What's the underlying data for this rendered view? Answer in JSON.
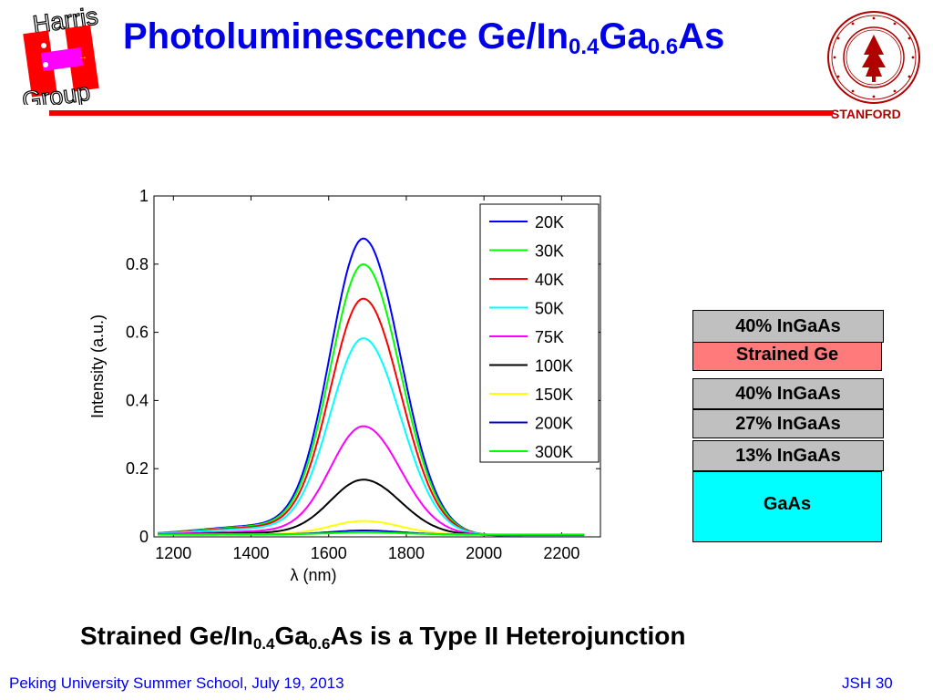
{
  "header": {
    "logo_text_top": "Harris",
    "logo_text_bottom": "Group",
    "title_main": "Photoluminescence Ge/In",
    "title_sub1": "0.4",
    "title_mid": "Ga",
    "title_sub2": "0.6",
    "title_end": "As",
    "seal_label": "STANFORD"
  },
  "colors": {
    "title": "#0000e6",
    "accent_bar": "#f00000",
    "strained_ge": "#ff7a7a",
    "ingaas": "#c0c0c0",
    "gaas": "#00ffff"
  },
  "chart_data": {
    "type": "line",
    "title": "",
    "xlabel": "λ (nm)",
    "ylabel": "Intensity (a.u.)",
    "xlim": [
      1150,
      2300
    ],
    "ylim": [
      0,
      1
    ],
    "xticks": [
      1200,
      1400,
      1600,
      1800,
      2000,
      2200
    ],
    "yticks": [
      0,
      0.2,
      0.4,
      0.6,
      0.8,
      1
    ],
    "ytick_labels": [
      "0",
      "0.2",
      "0.4",
      "0.6",
      "0.8",
      "1"
    ],
    "legend_position": "top-right",
    "series": [
      {
        "name": "20K",
        "color": "#0000ff",
        "peak": 0.86
      },
      {
        "name": "30K",
        "color": "#00ff00",
        "peak": 0.785
      },
      {
        "name": "40K",
        "color": "#ff0000",
        "peak": 0.685
      },
      {
        "name": "50K",
        "color": "#00ffff",
        "peak": 0.57
      },
      {
        "name": "75K",
        "color": "#ff00ff",
        "peak": 0.315
      },
      {
        "name": "100K",
        "color": "#000000",
        "peak": 0.16
      },
      {
        "name": "150K",
        "color": "#ffff00",
        "peak": 0.04
      },
      {
        "name": "200K",
        "color": "#0000cc",
        "peak": 0.012
      },
      {
        "name": "300K",
        "color": "#00ff00",
        "peak": 0.006
      }
    ]
  },
  "layers": [
    {
      "label": "40% InGaAs",
      "color": "#c0c0c0"
    },
    {
      "label": "Strained Ge",
      "color": "#ff7a7a"
    },
    {
      "label": "40% InGaAs",
      "color": "#c0c0c0"
    },
    {
      "label": "27% InGaAs",
      "color": "#c0c0c0"
    },
    {
      "label": "13% InGaAs",
      "color": "#c0c0c0"
    },
    {
      "label": "GaAs",
      "color": "#00ffff"
    }
  ],
  "statement": {
    "part1": "Strained Ge/In",
    "sub1": "0.4",
    "part2": "Ga",
    "sub2": "0.6",
    "part3": "As is a Type II Heterojunction"
  },
  "footer": {
    "left": "Peking University Summer School, July 19, 2013",
    "right": "JSH 30"
  }
}
